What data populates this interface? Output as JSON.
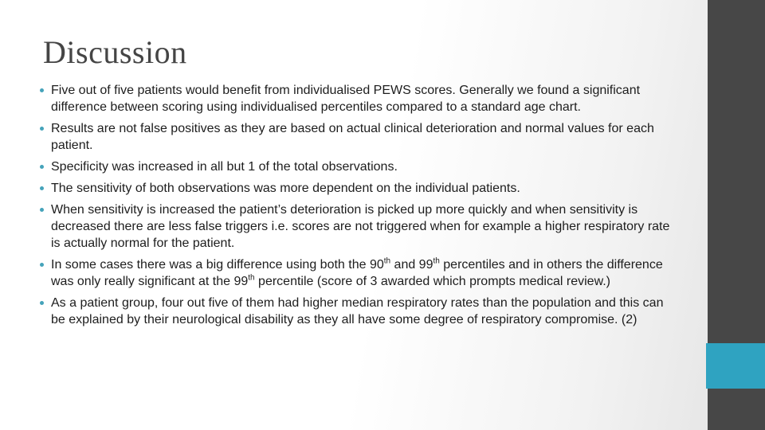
{
  "slide": {
    "title": "Discussion",
    "bullets": [
      {
        "segments": [
          {
            "t": "Five out of five patients would benefit from individualised PEWS scores. Generally we found a significant difference between scoring using individualised percentiles compared to a standard age chart."
          }
        ]
      },
      {
        "segments": [
          {
            "t": "Results are not false positives as they are based on actual clinical deterioration and normal values for each patient."
          }
        ]
      },
      {
        "segments": [
          {
            "t": "Specificity was increased in all but 1 of the total observations."
          }
        ]
      },
      {
        "segments": [
          {
            "t": "The sensitivity of both observations was more dependent on the individual patients."
          }
        ]
      },
      {
        "segments": [
          {
            "t": "When sensitivity is increased the patient’s deterioration is picked up more quickly and when sensitivity is decreased there are less false triggers i.e. scores are not triggered when for example a higher respiratory rate is actually normal for the patient."
          }
        ]
      },
      {
        "segments": [
          {
            "t": "In some cases there was a big difference using both the 90"
          },
          {
            "sup": "th"
          },
          {
            "t": " and 99"
          },
          {
            "sup": "th"
          },
          {
            "t": " percentiles and in others the difference was only really significant at the 99"
          },
          {
            "sup": "th"
          },
          {
            "t": " percentile (score of 3 awarded which prompts medical review.)"
          }
        ]
      },
      {
        "segments": [
          {
            "t": "As a patient group, four out five of them had higher median respiratory rates than the population and this can be explained by their neurological disability as they all have some degree of respiratory compromise. (2)"
          }
        ]
      }
    ]
  },
  "colors": {
    "accent_teal": "#2fa3c1",
    "sidebar_dark": "#474747",
    "title_text": "#454545",
    "body_text": "#1d1d1d",
    "bullet_dot": "#45a3ba"
  }
}
